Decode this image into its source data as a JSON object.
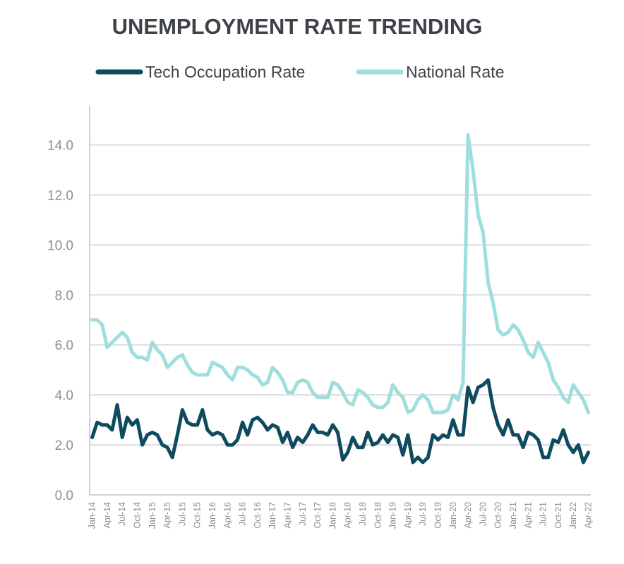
{
  "chart_data": {
    "type": "line",
    "title": "UNEMPLOYMENT RATE TRENDING",
    "xlabel": "",
    "ylabel": "",
    "ylim": [
      0,
      15
    ],
    "yticks": [
      "0.0",
      "2.0",
      "4.0",
      "6.0",
      "8.0",
      "10.0",
      "12.0",
      "14.0"
    ],
    "grid": true,
    "legend_position": "top",
    "x": [
      "Jan-14",
      "Feb-14",
      "Mar-14",
      "Apr-14",
      "May-14",
      "Jun-14",
      "Jul-14",
      "Aug-14",
      "Sep-14",
      "Oct-14",
      "Nov-14",
      "Dec-14",
      "Jan-15",
      "Feb-15",
      "Mar-15",
      "Apr-15",
      "May-15",
      "Jun-15",
      "Jul-15",
      "Aug-15",
      "Sep-15",
      "Oct-15",
      "Nov-15",
      "Dec-15",
      "Jan-16",
      "Feb-16",
      "Mar-16",
      "Apr-16",
      "May-16",
      "Jun-16",
      "Jul-16",
      "Aug-16",
      "Sep-16",
      "Oct-16",
      "Nov-16",
      "Dec-16",
      "Jan-17",
      "Feb-17",
      "Mar-17",
      "Apr-17",
      "May-17",
      "Jun-17",
      "Jul-17",
      "Aug-17",
      "Sep-17",
      "Oct-17",
      "Nov-17",
      "Dec-17",
      "Jan-18",
      "Feb-18",
      "Mar-18",
      "Apr-18",
      "May-18",
      "Jun-18",
      "Jul-18",
      "Aug-18",
      "Sep-18",
      "Oct-18",
      "Nov-18",
      "Dec-18",
      "Jan-19",
      "Feb-19",
      "Mar-19",
      "Apr-19",
      "May-19",
      "Jun-19",
      "Jul-19",
      "Aug-19",
      "Sep-19",
      "Oct-19",
      "Nov-19",
      "Dec-19",
      "Jan-20",
      "Feb-20",
      "Mar-20",
      "Apr-20",
      "May-20",
      "Jun-20",
      "Jul-20",
      "Aug-20",
      "Sep-20",
      "Oct-20",
      "Nov-20",
      "Dec-20",
      "Jan-21",
      "Feb-21",
      "Mar-21",
      "Apr-21",
      "May-21",
      "Jun-21",
      "Jul-21",
      "Aug-21",
      "Sep-21",
      "Oct-21",
      "Nov-21",
      "Dec-21",
      "Jan-22",
      "Feb-22",
      "Mar-22",
      "Apr-22"
    ],
    "xtick_labels": [
      "Jan-14",
      "Apr-14",
      "Jul-14",
      "Oct-14",
      "Jan-15",
      "Apr-15",
      "Jul-15",
      "Oct-15",
      "Jan-16",
      "Apr-16",
      "Jul-16",
      "Oct-16",
      "Jan-17",
      "Apr-17",
      "Jul-17",
      "Oct-17",
      "Jan-18",
      "Apr-18",
      "Jul-18",
      "Oct-18",
      "Jan-19",
      "Apr-19",
      "Jul-19",
      "Oct-19",
      "Jan-20",
      "Apr-20",
      "Jul-20",
      "Oct-20",
      "Jan-21",
      "Apr-21",
      "Jul-21",
      "Oct-21",
      "Jan-22",
      "Apr-22"
    ],
    "series": [
      {
        "name": "Tech Occupation Rate",
        "color": "#0f4a5e",
        "values": [
          2.3,
          2.9,
          2.8,
          2.8,
          2.6,
          3.6,
          2.3,
          3.1,
          2.8,
          3.0,
          2.0,
          2.4,
          2.5,
          2.4,
          2.0,
          1.9,
          1.5,
          2.4,
          3.4,
          2.9,
          2.8,
          2.8,
          3.4,
          2.6,
          2.4,
          2.5,
          2.4,
          2.0,
          2.0,
          2.2,
          2.9,
          2.4,
          3.0,
          3.1,
          2.9,
          2.6,
          2.8,
          2.7,
          2.1,
          2.5,
          1.9,
          2.3,
          2.1,
          2.4,
          2.8,
          2.5,
          2.5,
          2.4,
          2.8,
          2.5,
          1.4,
          1.7,
          2.3,
          1.9,
          1.9,
          2.5,
          2.0,
          2.1,
          2.4,
          2.1,
          2.4,
          2.3,
          1.6,
          2.4,
          1.3,
          1.5,
          1.3,
          1.5,
          2.4,
          2.2,
          2.4,
          2.3,
          3.0,
          2.4,
          2.4,
          4.3,
          3.7,
          4.3,
          4.4,
          4.6,
          3.5,
          2.8,
          2.4,
          3.0,
          2.4,
          2.4,
          1.9,
          2.5,
          2.4,
          2.2,
          1.5,
          1.5,
          2.2,
          2.1,
          2.6,
          2.0,
          1.7,
          2.0,
          1.3,
          1.7
        ]
      },
      {
        "name": "National Rate",
        "color": "#9fdedd",
        "values": [
          7.0,
          7.0,
          6.8,
          5.9,
          6.1,
          6.3,
          6.5,
          6.3,
          5.7,
          5.5,
          5.5,
          5.4,
          6.1,
          5.8,
          5.6,
          5.1,
          5.3,
          5.5,
          5.6,
          5.2,
          4.9,
          4.8,
          4.8,
          4.8,
          5.3,
          5.2,
          5.1,
          4.8,
          4.6,
          5.1,
          5.1,
          5.0,
          4.8,
          4.7,
          4.4,
          4.5,
          5.1,
          4.9,
          4.6,
          4.1,
          4.1,
          4.5,
          4.6,
          4.5,
          4.1,
          3.9,
          3.9,
          3.9,
          4.5,
          4.4,
          4.1,
          3.7,
          3.6,
          4.2,
          4.1,
          3.9,
          3.6,
          3.5,
          3.5,
          3.7,
          4.4,
          4.1,
          3.9,
          3.3,
          3.4,
          3.8,
          4.0,
          3.8,
          3.3,
          3.3,
          3.3,
          3.4,
          4.0,
          3.8,
          4.5,
          14.4,
          13.0,
          11.2,
          10.5,
          8.5,
          7.7,
          6.6,
          6.4,
          6.5,
          6.8,
          6.6,
          6.2,
          5.7,
          5.5,
          6.1,
          5.7,
          5.3,
          4.6,
          4.3,
          3.9,
          3.7,
          4.4,
          4.1,
          3.8,
          3.3
        ]
      }
    ]
  }
}
